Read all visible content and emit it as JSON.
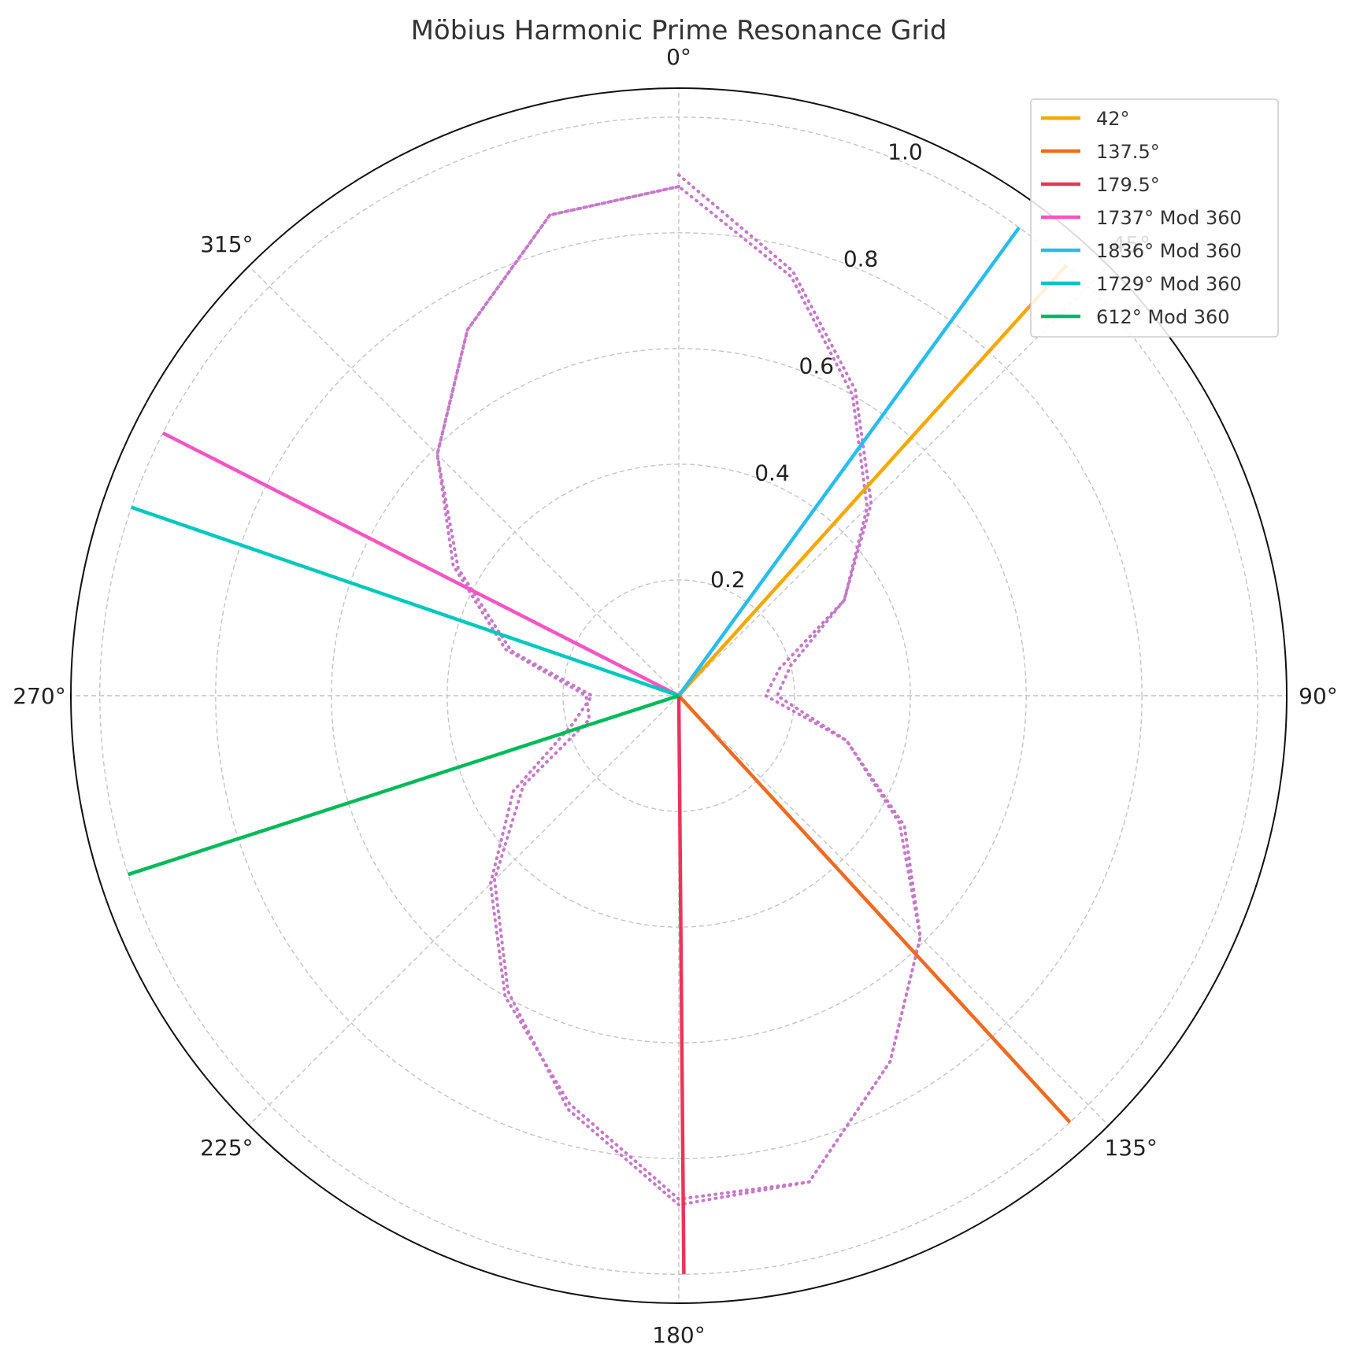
{
  "chart_data": {
    "type": "polar-line",
    "title": "Möbius Harmonic Prime Resonance Grid",
    "theta_direction": "clockwise",
    "theta_zero": "top",
    "rlim": [
      0,
      1.05
    ],
    "r_ticks": [
      {
        "value": 0.2,
        "label": "0.2"
      },
      {
        "value": 0.4,
        "label": "0.4"
      },
      {
        "value": 0.6,
        "label": "0.6"
      },
      {
        "value": 0.8,
        "label": "0.8"
      },
      {
        "value": 1.0,
        "label": "1.0"
      }
    ],
    "theta_ticks": [
      {
        "deg": 0,
        "label": "0°"
      },
      {
        "deg": 45,
        "label": "45°"
      },
      {
        "deg": 90,
        "label": "90°"
      },
      {
        "deg": 135,
        "label": "135°"
      },
      {
        "deg": 180,
        "label": "180°"
      },
      {
        "deg": 225,
        "label": "225°"
      },
      {
        "deg": 270,
        "label": "270°"
      },
      {
        "deg": 315,
        "label": "315°"
      }
    ],
    "grid": true,
    "legend_position": "top-right",
    "series": [
      {
        "name": "42°",
        "theta_deg": 42,
        "r": 1.0,
        "color": "#F5A800"
      },
      {
        "name": "137.5°",
        "theta_deg": 137.5,
        "r": 1.0,
        "color": "#EE6A23"
      },
      {
        "name": "179.5°",
        "theta_deg": 179.5,
        "r": 1.0,
        "color": "#EE3359"
      },
      {
        "name": "1737° Mod 360",
        "theta_deg": 297,
        "r": 1.0,
        "color": "#F556C3"
      },
      {
        "name": "1836° Mod 360",
        "theta_deg": 36,
        "r": 1.0,
        "color": "#2ABCEE"
      },
      {
        "name": "1729° Mod 360",
        "theta_deg": 289,
        "r": 1.0,
        "color": "#00C8BC"
      },
      {
        "name": "612° Mod 360",
        "theta_deg": 252,
        "r": 1.0,
        "color": "#00BA59"
      }
    ],
    "dotted_spiral": {
      "color": "#C57AC8",
      "points": [
        [
          0,
          0.9
        ],
        [
          15,
          0.76
        ],
        [
          30,
          0.61
        ],
        [
          45,
          0.47
        ],
        [
          60,
          0.33
        ],
        [
          75,
          0.18
        ],
        [
          90,
          0.15
        ],
        [
          105,
          0.3
        ],
        [
          120,
          0.44
        ],
        [
          135,
          0.59
        ],
        [
          150,
          0.73
        ],
        [
          165,
          0.87
        ],
        [
          180,
          0.88
        ],
        [
          195,
          0.74
        ],
        [
          210,
          0.59
        ],
        [
          225,
          0.45
        ],
        [
          240,
          0.31
        ],
        [
          255,
          0.16
        ],
        [
          270,
          0.16
        ],
        [
          285,
          0.31
        ],
        [
          300,
          0.45
        ],
        [
          315,
          0.59
        ],
        [
          330,
          0.73
        ],
        [
          345,
          0.86
        ],
        [
          360,
          0.88
        ],
        [
          375,
          0.75
        ],
        [
          390,
          0.6
        ],
        [
          405,
          0.46
        ],
        [
          420,
          0.33
        ],
        [
          435,
          0.2
        ],
        [
          450,
          0.17
        ],
        [
          465,
          0.3
        ],
        [
          480,
          0.45
        ],
        [
          495,
          0.59
        ],
        [
          510,
          0.73
        ],
        [
          525,
          0.87
        ],
        [
          540,
          0.87
        ],
        [
          555,
          0.73
        ],
        [
          570,
          0.6
        ],
        [
          585,
          0.46
        ],
        [
          600,
          0.33
        ],
        [
          615,
          0.19
        ],
        [
          630,
          0.15
        ],
        [
          645,
          0.3
        ],
        [
          660,
          0.44
        ],
        [
          675,
          0.59
        ],
        [
          690,
          0.73
        ],
        [
          705,
          0.86
        ],
        [
          720,
          0.88
        ]
      ]
    }
  }
}
